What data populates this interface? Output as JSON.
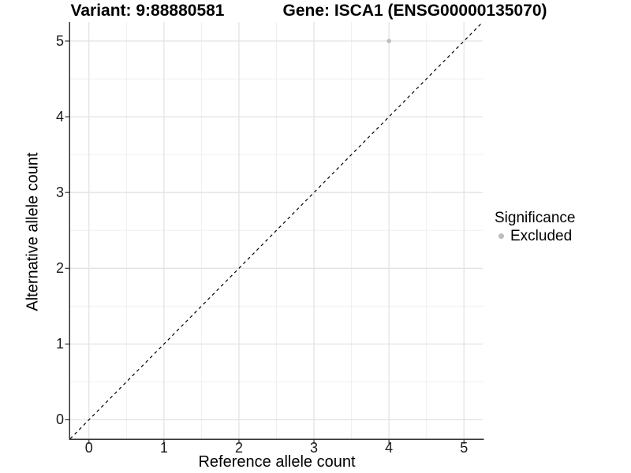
{
  "titles": {
    "variant": "Variant: 9:88880581",
    "gene": "Gene: ISCA1 (ENSG00000135070)"
  },
  "legend": {
    "title": "Significance",
    "items": [
      {
        "label": "Excluded",
        "color": "#bdbdbd",
        "marker": "circle"
      }
    ]
  },
  "colors": {
    "grid_major": "#e3e3e3",
    "grid_minor": "#efefef",
    "axis_line": "#333333",
    "tick_mark": "#333333",
    "tick_label": "#1a1a1a",
    "reference_line": "#000000",
    "point": "#bdbdbd",
    "background": "#ffffff"
  },
  "chart_data": {
    "type": "scatter",
    "title_left": "Variant: 9:88880581",
    "title_right": "Gene: ISCA1 (ENSG00000135070)",
    "xlabel": "Reference allele count",
    "ylabel": "Alternative allele count",
    "xlim": [
      -0.25,
      5.25
    ],
    "ylim": [
      -0.25,
      5.25
    ],
    "x_ticks": [
      0,
      1,
      2,
      3,
      4,
      5
    ],
    "y_ticks": [
      0,
      1,
      2,
      3,
      4,
      5
    ],
    "x_tick_labels": [
      "0",
      "1",
      "2",
      "3",
      "4",
      "5"
    ],
    "y_tick_labels": [
      "0",
      "1",
      "2",
      "3",
      "4",
      "5"
    ],
    "minor_grid_step": 0.5,
    "grid": true,
    "points": [
      {
        "x": 4,
        "y": 5,
        "series": "Excluded",
        "color": "#bdbdbd",
        "radius": 2.8
      }
    ],
    "reference_line": {
      "kind": "identity",
      "from": [
        -0.25,
        -0.25
      ],
      "to": [
        5.25,
        5.25
      ],
      "style": "dashed",
      "color": "#000000"
    },
    "legend_position": "right",
    "legend_title": "Significance",
    "legend_entries": [
      "Excluded"
    ]
  }
}
